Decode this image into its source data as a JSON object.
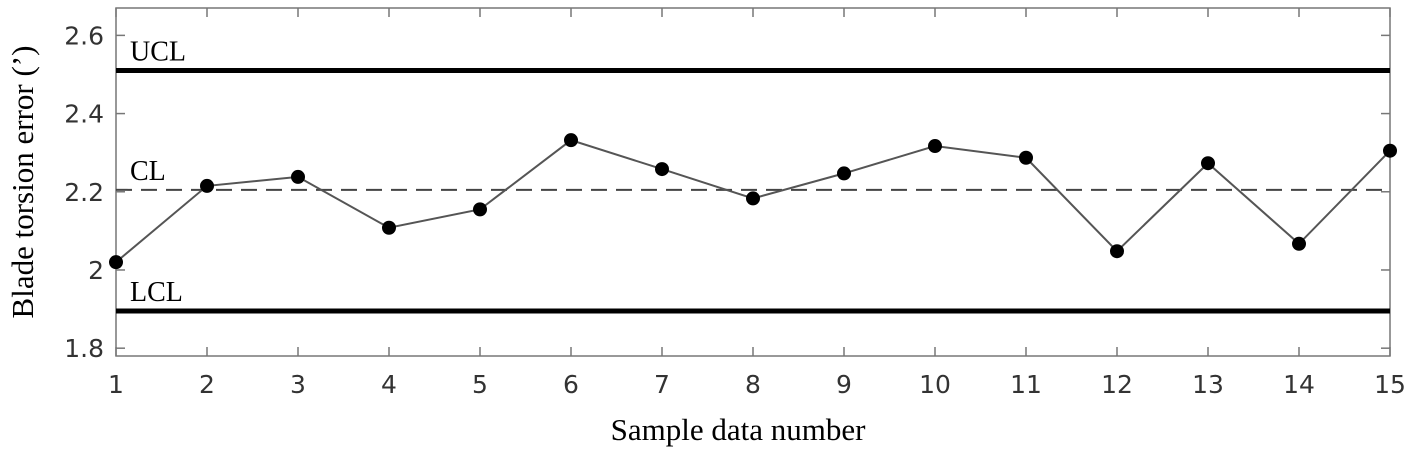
{
  "chart_data": {
    "type": "line",
    "xlabel": "Sample data number",
    "ylabel": "Blade torsion error (’)",
    "xlim": [
      1,
      15
    ],
    "ylim": [
      1.78,
      2.67
    ],
    "x_ticks": [
      1,
      2,
      3,
      4,
      5,
      6,
      7,
      8,
      9,
      10,
      11,
      12,
      13,
      14,
      15
    ],
    "y_ticks": [
      1.8,
      2,
      2.2,
      2.4,
      2.6
    ],
    "y_tick_labels": [
      "1.8",
      "2",
      "2.2",
      "2.4",
      "2.6"
    ],
    "grid": false,
    "series": [
      {
        "x": [
          1,
          2,
          3,
          4,
          5,
          6,
          7,
          8,
          9,
          10,
          11,
          12,
          13,
          14,
          15
        ],
        "values": [
          2.02,
          2.215,
          2.238,
          2.108,
          2.155,
          2.332,
          2.258,
          2.183,
          2.247,
          2.317,
          2.287,
          2.048,
          2.273,
          2.067,
          2.305
        ],
        "color": "#000000",
        "line_color": "#555555"
      }
    ],
    "control_lines": [
      {
        "label": "UCL",
        "value": 2.51,
        "style": "solid",
        "color": "#000000"
      },
      {
        "label": "CL",
        "value": 2.205,
        "style": "dashed",
        "color": "#444444"
      },
      {
        "label": "LCL",
        "value": 1.895,
        "style": "solid",
        "color": "#000000"
      }
    ]
  }
}
